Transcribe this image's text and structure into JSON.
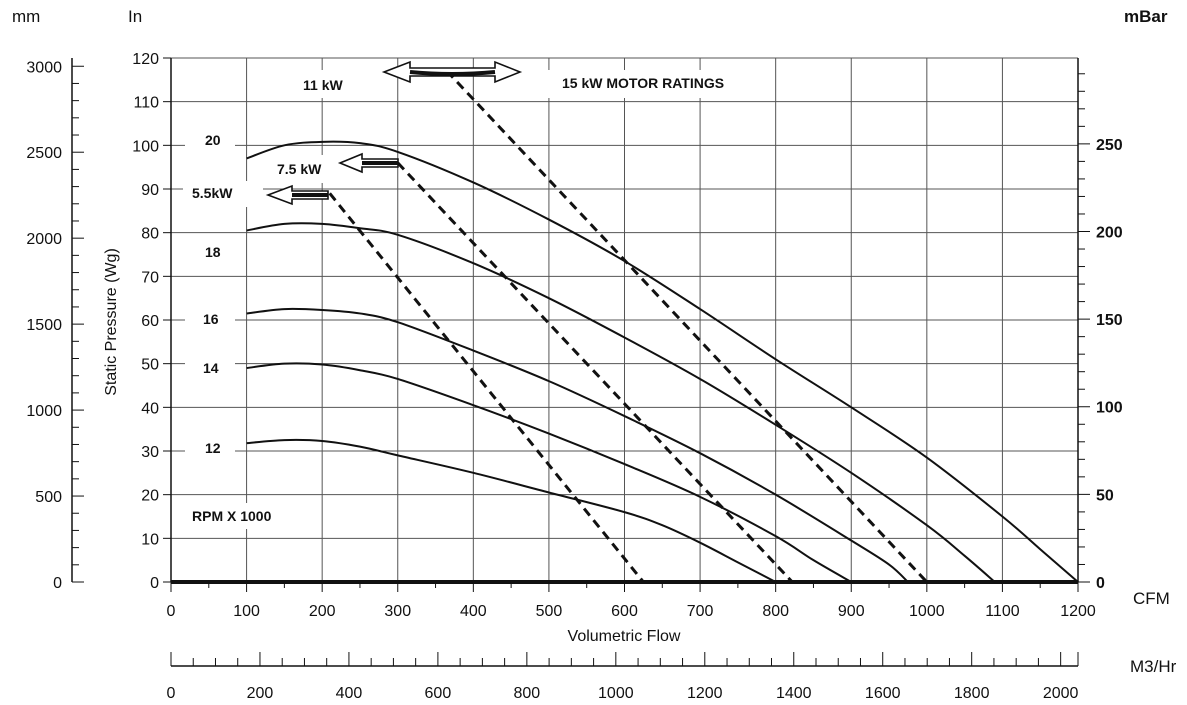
{
  "chart_data": {
    "type": "line",
    "title": "",
    "xlabel": "Volumetric Flow",
    "ylabel": "Static Pressure (Wg)",
    "x_unit": "CFM",
    "y_unit": "In",
    "xlim": [
      0,
      1200
    ],
    "ylim": [
      0,
      120
    ],
    "x_ticks": [
      0,
      100,
      200,
      300,
      400,
      500,
      600,
      700,
      800,
      900,
      1000,
      1100,
      1200
    ],
    "y_ticks": [
      0,
      10,
      20,
      30,
      40,
      50,
      60,
      70,
      80,
      90,
      100,
      110,
      120
    ],
    "grid": true,
    "secondary_axes": {
      "mm": {
        "label": "mm",
        "ticks": [
          0,
          500,
          1000,
          1500,
          2000,
          2500,
          3000
        ],
        "max": 3048
      },
      "mbar": {
        "label": "mBar",
        "ticks": [
          0,
          50,
          100,
          150,
          200,
          250
        ],
        "max": 299
      },
      "m3hr": {
        "label": "M3/Hr",
        "ticks": [
          0,
          200,
          400,
          600,
          800,
          1000,
          1200,
          1400,
          1600,
          1800,
          2000
        ],
        "max": 2039
      }
    },
    "series": [
      {
        "name": "20",
        "x": [
          100,
          150,
          200,
          250,
          300,
          400,
          500,
          600,
          700,
          800,
          900,
          1000,
          1100,
          1150,
          1200
        ],
        "y": [
          97,
          100,
          100.8,
          100.5,
          98.5,
          91.5,
          83,
          73.5,
          62.5,
          51,
          40,
          28.5,
          15,
          7.5,
          0
        ]
      },
      {
        "name": "18",
        "x": [
          100,
          150,
          200,
          250,
          300,
          400,
          500,
          600,
          700,
          800,
          900,
          1000,
          1050,
          1090
        ],
        "y": [
          80.5,
          82,
          82,
          81,
          79.5,
          73,
          65,
          56,
          46.5,
          36,
          25,
          13,
          6,
          0
        ]
      },
      {
        "name": "16",
        "x": [
          100,
          150,
          200,
          250,
          300,
          400,
          500,
          600,
          700,
          800,
          900,
          950,
          975
        ],
        "y": [
          61.5,
          62.5,
          62.3,
          61.5,
          59.5,
          53,
          46,
          38,
          29.5,
          20,
          9.5,
          4,
          0
        ]
      },
      {
        "name": "14",
        "x": [
          100,
          150,
          200,
          250,
          300,
          400,
          500,
          600,
          700,
          800,
          850,
          900
        ],
        "y": [
          49,
          50,
          49.8,
          48.5,
          46.5,
          40.5,
          34,
          27,
          19.5,
          10.5,
          5,
          0
        ]
      },
      {
        "name": "12",
        "x": [
          100,
          150,
          200,
          250,
          300,
          400,
          500,
          600,
          650,
          700,
          750,
          800
        ],
        "y": [
          31.8,
          32.5,
          32.3,
          31,
          29,
          25,
          20.5,
          16,
          13,
          9,
          4.5,
          0
        ]
      }
    ],
    "motor_lines": [
      {
        "label": "5.5kW",
        "x": [
          210,
          625
        ],
        "y": [
          89,
          0
        ]
      },
      {
        "label": "7.5 kW",
        "x": [
          300,
          822
        ],
        "y": [
          96,
          0
        ]
      },
      {
        "label": "11 kW",
        "x": [
          365,
          1000
        ],
        "y": [
          117,
          0
        ]
      }
    ],
    "annotations": {
      "rpm": "RPM X 1000",
      "motor_ratings": "15 kW MOTOR RATINGS",
      "m11": "11 kW",
      "m75": "7.5 kW",
      "m55": "5.5kW"
    }
  }
}
